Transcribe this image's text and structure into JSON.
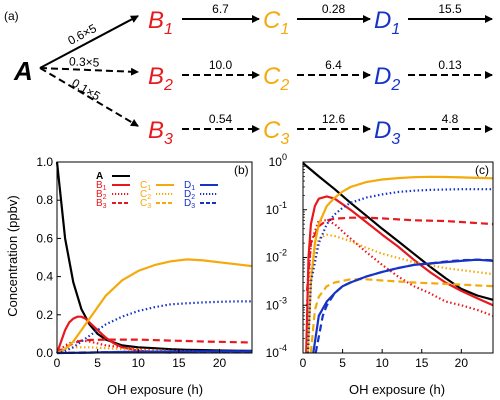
{
  "colors": {
    "A": "#000000",
    "B": "#e8191e",
    "C": "#f5a90a",
    "D": "#1633c8"
  },
  "scheme": {
    "panel_label": "(a)",
    "source": {
      "text": "A",
      "color": "#000000"
    },
    "branches": [
      {
        "rate": "0.6×5",
        "style": "solid",
        "nodes": [
          {
            "letter": "B",
            "sub": "1"
          },
          {
            "letter": "C",
            "sub": "1"
          },
          {
            "letter": "D",
            "sub": "1"
          }
        ],
        "rates": [
          "6.7",
          "0.28",
          "15.5"
        ]
      },
      {
        "rate": "0.3×5",
        "style": "dashed-long",
        "nodes": [
          {
            "letter": "B",
            "sub": "2"
          },
          {
            "letter": "C",
            "sub": "2"
          },
          {
            "letter": "D",
            "sub": "2"
          }
        ],
        "rates": [
          "10.0",
          "6.4",
          "0.13"
        ]
      },
      {
        "rate": "0.1×5",
        "style": "dashed",
        "nodes": [
          {
            "letter": "B",
            "sub": "3"
          },
          {
            "letter": "C",
            "sub": "3"
          },
          {
            "letter": "D",
            "sub": "3"
          }
        ],
        "rates": [
          "0.54",
          "12.6",
          "4.8"
        ]
      }
    ]
  },
  "chart_data": [
    {
      "type": "line",
      "panel": "(b)",
      "xlabel": "OH exposure (h)",
      "ylabel": "Concentration (ppbv)",
      "xlim": [
        0,
        24
      ],
      "ylim": [
        0,
        1.0
      ],
      "xticks": [
        0,
        5,
        10,
        15,
        20
      ],
      "yticks": [
        0.0,
        0.2,
        0.4,
        0.6,
        0.8,
        1.0
      ],
      "ytick_labels": [
        "0.0",
        "0.2",
        "0.4",
        "0.6",
        "0.8",
        "1.0"
      ],
      "legend_position": "top-right",
      "legend": [
        {
          "name": "A",
          "color": "#000000",
          "style": "solid"
        },
        {
          "name": "B1",
          "color": "#e8191e",
          "style": "solid"
        },
        {
          "name": "B2",
          "color": "#e8191e",
          "style": "dotted"
        },
        {
          "name": "B3",
          "color": "#e8191e",
          "style": "dashed"
        },
        {
          "name": "C1",
          "color": "#f5a90a",
          "style": "solid"
        },
        {
          "name": "C2",
          "color": "#f5a90a",
          "style": "dotted"
        },
        {
          "name": "C3",
          "color": "#f5a90a",
          "style": "dashed"
        },
        {
          "name": "D1",
          "color": "#1633c8",
          "style": "solid"
        },
        {
          "name": "D2",
          "color": "#1633c8",
          "style": "dotted"
        },
        {
          "name": "D3",
          "color": "#1633c8",
          "style": "dashed"
        }
      ],
      "series": [
        {
          "name": "A",
          "color": "#000000",
          "style": "solid",
          "x": [
            0,
            1,
            2,
            3,
            4,
            5,
            6,
            8,
            10,
            12,
            14,
            16,
            18,
            20,
            22,
            24
          ],
          "y": [
            1.0,
            0.6,
            0.37,
            0.23,
            0.15,
            0.1,
            0.07,
            0.04,
            0.03,
            0.025,
            0.02,
            0.017,
            0.015,
            0.013,
            0.012,
            0.011
          ]
        },
        {
          "name": "B1",
          "color": "#e8191e",
          "style": "solid",
          "x": [
            0,
            0.5,
            1,
            1.5,
            2,
            2.5,
            3,
            3.5,
            4,
            5,
            6,
            7,
            8,
            10,
            12,
            14
          ],
          "y": [
            0.0,
            0.06,
            0.12,
            0.16,
            0.18,
            0.19,
            0.19,
            0.18,
            0.16,
            0.12,
            0.08,
            0.05,
            0.03,
            0.012,
            0.005,
            0.002
          ]
        },
        {
          "name": "B2",
          "color": "#e8191e",
          "style": "dotted",
          "x": [
            0,
            1,
            2,
            3,
            4,
            5,
            6,
            8,
            10,
            14,
            18,
            24
          ],
          "y": [
            0.0,
            0.04,
            0.06,
            0.065,
            0.06,
            0.05,
            0.04,
            0.03,
            0.02,
            0.012,
            0.008,
            0.006
          ]
        },
        {
          "name": "B3",
          "color": "#e8191e",
          "style": "dashed",
          "x": [
            0,
            1,
            2,
            3,
            4,
            6,
            8,
            10,
            14,
            18,
            24
          ],
          "y": [
            0.0,
            0.03,
            0.05,
            0.065,
            0.068,
            0.07,
            0.07,
            0.07,
            0.065,
            0.06,
            0.055
          ]
        },
        {
          "name": "C1",
          "color": "#f5a90a",
          "style": "solid",
          "x": [
            0,
            1,
            2,
            3,
            4,
            5,
            6,
            8,
            10,
            12,
            14,
            16,
            18,
            20,
            22,
            24
          ],
          "y": [
            0.0,
            0.02,
            0.06,
            0.12,
            0.18,
            0.24,
            0.3,
            0.38,
            0.43,
            0.46,
            0.48,
            0.49,
            0.485,
            0.475,
            0.465,
            0.455
          ]
        },
        {
          "name": "C2",
          "color": "#f5a90a",
          "style": "dotted",
          "x": [
            0,
            1,
            2,
            3,
            4,
            6,
            8,
            10,
            14,
            18,
            24
          ],
          "y": [
            0.0,
            0.02,
            0.03,
            0.03,
            0.03,
            0.025,
            0.02,
            0.015,
            0.01,
            0.007,
            0.005
          ]
        },
        {
          "name": "C3",
          "color": "#f5a90a",
          "style": "dashed",
          "x": [
            0,
            2,
            4,
            6,
            10,
            14,
            18,
            24
          ],
          "y": [
            0.0,
            0.002,
            0.004,
            0.004,
            0.004,
            0.004,
            0.004,
            0.004
          ]
        },
        {
          "name": "D1",
          "color": "#1633c8",
          "style": "solid",
          "x": [
            0,
            2,
            4,
            6,
            8,
            10,
            14,
            18,
            24
          ],
          "y": [
            0.0,
            0.001,
            0.002,
            0.004,
            0.005,
            0.006,
            0.008,
            0.009,
            0.009
          ]
        },
        {
          "name": "D2",
          "color": "#1633c8",
          "style": "dotted",
          "x": [
            0,
            1,
            2,
            3,
            4,
            5,
            6,
            8,
            10,
            12,
            14,
            16,
            18,
            20,
            22,
            24
          ],
          "y": [
            0.0,
            0.01,
            0.03,
            0.06,
            0.09,
            0.12,
            0.15,
            0.19,
            0.22,
            0.24,
            0.255,
            0.26,
            0.265,
            0.268,
            0.27,
            0.27
          ]
        },
        {
          "name": "D3",
          "color": "#1633c8",
          "style": "dashed",
          "x": [
            0,
            2,
            4,
            6,
            8,
            10,
            14,
            18,
            24
          ],
          "y": [
            0.0,
            0.001,
            0.002,
            0.004,
            0.005,
            0.006,
            0.007,
            0.008,
            0.009
          ]
        }
      ]
    },
    {
      "type": "line",
      "panel": "(c)",
      "xlabel": "OH exposure (h)",
      "ylabel": "",
      "xlim": [
        0,
        24
      ],
      "ylim": [
        0.0001,
        1
      ],
      "yscale": "log",
      "xticks": [
        0,
        5,
        10,
        15,
        20
      ],
      "yticks": [
        0.0001,
        0.001,
        0.01,
        0.1,
        1
      ],
      "ytick_labels": [
        {
          "base": "10",
          "exp": "-4"
        },
        {
          "base": "10",
          "exp": "-3"
        },
        {
          "base": "10",
          "exp": "-2"
        },
        {
          "base": "10",
          "exp": "-1"
        },
        {
          "base": "10",
          "exp": "0"
        }
      ],
      "series": [
        {
          "name": "A",
          "color": "#000000",
          "style": "solid",
          "x": [
            0,
            2,
            4,
            6,
            8,
            10,
            12,
            14,
            16,
            18,
            20,
            22,
            24
          ],
          "y": [
            0.95,
            0.5,
            0.27,
            0.14,
            0.075,
            0.04,
            0.022,
            0.012,
            0.0065,
            0.0037,
            0.0022,
            0.0016,
            0.0013
          ]
        },
        {
          "name": "B1",
          "color": "#e8191e",
          "style": "solid",
          "x": [
            0.4,
            0.7,
            1,
            1.5,
            2,
            3,
            4,
            6,
            8,
            10,
            12,
            14,
            16,
            18,
            20,
            22,
            24
          ],
          "y": [
            0.0001,
            0.01,
            0.05,
            0.12,
            0.17,
            0.19,
            0.17,
            0.1,
            0.055,
            0.03,
            0.017,
            0.009,
            0.005,
            0.003,
            0.002,
            0.0014,
            0.001
          ]
        },
        {
          "name": "B2",
          "color": "#e8191e",
          "style": "dotted",
          "x": [
            0.5,
            1,
            2,
            3,
            4,
            5,
            6,
            8,
            10,
            12,
            14,
            16,
            18,
            20,
            22,
            24
          ],
          "y": [
            0.001,
            0.02,
            0.06,
            0.06,
            0.05,
            0.035,
            0.025,
            0.013,
            0.007,
            0.004,
            0.0025,
            0.0018,
            0.0012,
            0.001,
            0.0008,
            0.0006
          ]
        },
        {
          "name": "B3",
          "color": "#e8191e",
          "style": "dashed",
          "x": [
            0.5,
            1,
            2,
            3,
            4,
            6,
            8,
            10,
            14,
            18,
            24
          ],
          "y": [
            0.002,
            0.02,
            0.045,
            0.06,
            0.065,
            0.068,
            0.068,
            0.066,
            0.06,
            0.058,
            0.05
          ]
        },
        {
          "name": "C1",
          "color": "#f5a90a",
          "style": "solid",
          "x": [
            0.6,
            1,
            1.5,
            2,
            3,
            4,
            5,
            6,
            8,
            10,
            12,
            14,
            16,
            18,
            20,
            22,
            24
          ],
          "y": [
            0.0001,
            0.003,
            0.02,
            0.05,
            0.12,
            0.18,
            0.24,
            0.3,
            0.38,
            0.43,
            0.46,
            0.48,
            0.49,
            0.485,
            0.475,
            0.465,
            0.455
          ]
        },
        {
          "name": "C2",
          "color": "#f5a90a",
          "style": "dotted",
          "x": [
            0.7,
            1,
            2,
            3,
            4,
            6,
            8,
            10,
            14,
            18,
            24
          ],
          "y": [
            0.0001,
            0.005,
            0.025,
            0.03,
            0.028,
            0.022,
            0.016,
            0.012,
            0.008,
            0.006,
            0.0045
          ]
        },
        {
          "name": "C3",
          "color": "#f5a90a",
          "style": "dashed",
          "x": [
            1,
            1.5,
            2,
            3,
            4,
            6,
            8,
            10,
            14,
            18,
            24
          ],
          "y": [
            0.0001,
            0.0008,
            0.0015,
            0.0025,
            0.003,
            0.0035,
            0.0035,
            0.0033,
            0.003,
            0.0028,
            0.0025
          ]
        },
        {
          "name": "D1",
          "color": "#1633c8",
          "style": "solid",
          "x": [
            1.3,
            2,
            3,
            4,
            5,
            6,
            8,
            10,
            12,
            14,
            16,
            18,
            20,
            22,
            24
          ],
          "y": [
            0.0001,
            0.0006,
            0.0012,
            0.0018,
            0.0025,
            0.003,
            0.004,
            0.005,
            0.006,
            0.007,
            0.0075,
            0.008,
            0.0085,
            0.009,
            0.0085
          ]
        },
        {
          "name": "D2",
          "color": "#1633c8",
          "style": "dotted",
          "x": [
            0.6,
            1,
            2,
            3,
            4,
            5,
            6,
            8,
            10,
            12,
            14,
            16,
            18,
            20,
            22,
            24
          ],
          "y": [
            0.0001,
            0.003,
            0.02,
            0.05,
            0.08,
            0.11,
            0.14,
            0.18,
            0.21,
            0.235,
            0.25,
            0.26,
            0.265,
            0.27,
            0.27,
            0.27
          ]
        },
        {
          "name": "D3",
          "color": "#1633c8",
          "style": "dashed",
          "x": [
            1.6,
            2.5,
            3,
            4,
            5,
            6,
            8,
            10,
            12,
            14,
            16,
            18,
            20,
            22,
            24
          ],
          "y": [
            0.0001,
            0.0006,
            0.001,
            0.0018,
            0.0025,
            0.003,
            0.004,
            0.005,
            0.006,
            0.007,
            0.0075,
            0.0082,
            0.0088,
            0.009,
            0.0088
          ]
        }
      ]
    }
  ]
}
